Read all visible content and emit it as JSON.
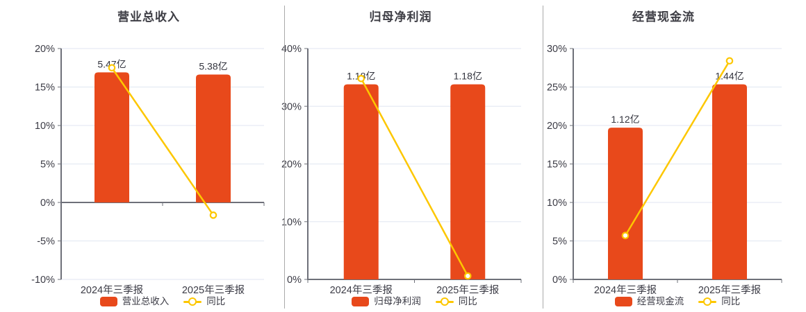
{
  "colors": {
    "bar": "#e8491b",
    "line": "#fdc700",
    "grid": "#e0e6f1",
    "axis": "#6e7079",
    "tick_text": "#3b3b45",
    "label_text": "#33343e",
    "title_text": "#3d3d44",
    "divider": "#aaaaaa",
    "background": "#ffffff"
  },
  "chart_data": [
    {
      "type": "bar+line",
      "title": "营业总收入",
      "categories": [
        "2024年三季报",
        "2025年三季报"
      ],
      "bar_series": {
        "name": "营业总收入",
        "unit": "亿",
        "values": [
          5.47,
          5.38
        ],
        "labels": [
          "5.47亿",
          "5.38亿"
        ]
      },
      "line_series": {
        "name": "同比",
        "values_pct": [
          17.5,
          -1.65
        ]
      },
      "y_axis": {
        "min": -10,
        "max": 20,
        "step": 5,
        "labels": [
          "-10%",
          "-5%",
          "0%",
          "5%",
          "10%",
          "15%",
          "20%"
        ]
      },
      "grid": true,
      "legend_position": "bottom"
    },
    {
      "type": "bar+line",
      "title": "归母净利润",
      "categories": [
        "2024年三季报",
        "2025年三季报"
      ],
      "bar_series": {
        "name": "归母净利润",
        "unit": "亿",
        "values": [
          1.18,
          1.18
        ],
        "labels": [
          "1.18亿",
          "1.18亿"
        ]
      },
      "line_series": {
        "name": "同比",
        "values_pct": [
          34.8,
          0.6
        ]
      },
      "y_axis": {
        "min": 0,
        "max": 40,
        "step": 10,
        "labels": [
          "0%",
          "10%",
          "20%",
          "30%",
          "40%"
        ]
      },
      "grid": true,
      "legend_position": "bottom"
    },
    {
      "type": "bar+line",
      "title": "经营现金流",
      "categories": [
        "2024年三季报",
        "2025年三季报"
      ],
      "bar_series": {
        "name": "经营现金流",
        "unit": "亿",
        "values": [
          1.12,
          1.44
        ],
        "labels": [
          "1.12亿",
          "1.44亿"
        ]
      },
      "line_series": {
        "name": "同比",
        "values_pct": [
          5.7,
          28.4
        ]
      },
      "y_axis": {
        "min": 0,
        "max": 30,
        "step": 5,
        "labels": [
          "0%",
          "5%",
          "10%",
          "15%",
          "20%",
          "25%",
          "30%"
        ]
      },
      "grid": true,
      "legend_position": "bottom"
    }
  ]
}
